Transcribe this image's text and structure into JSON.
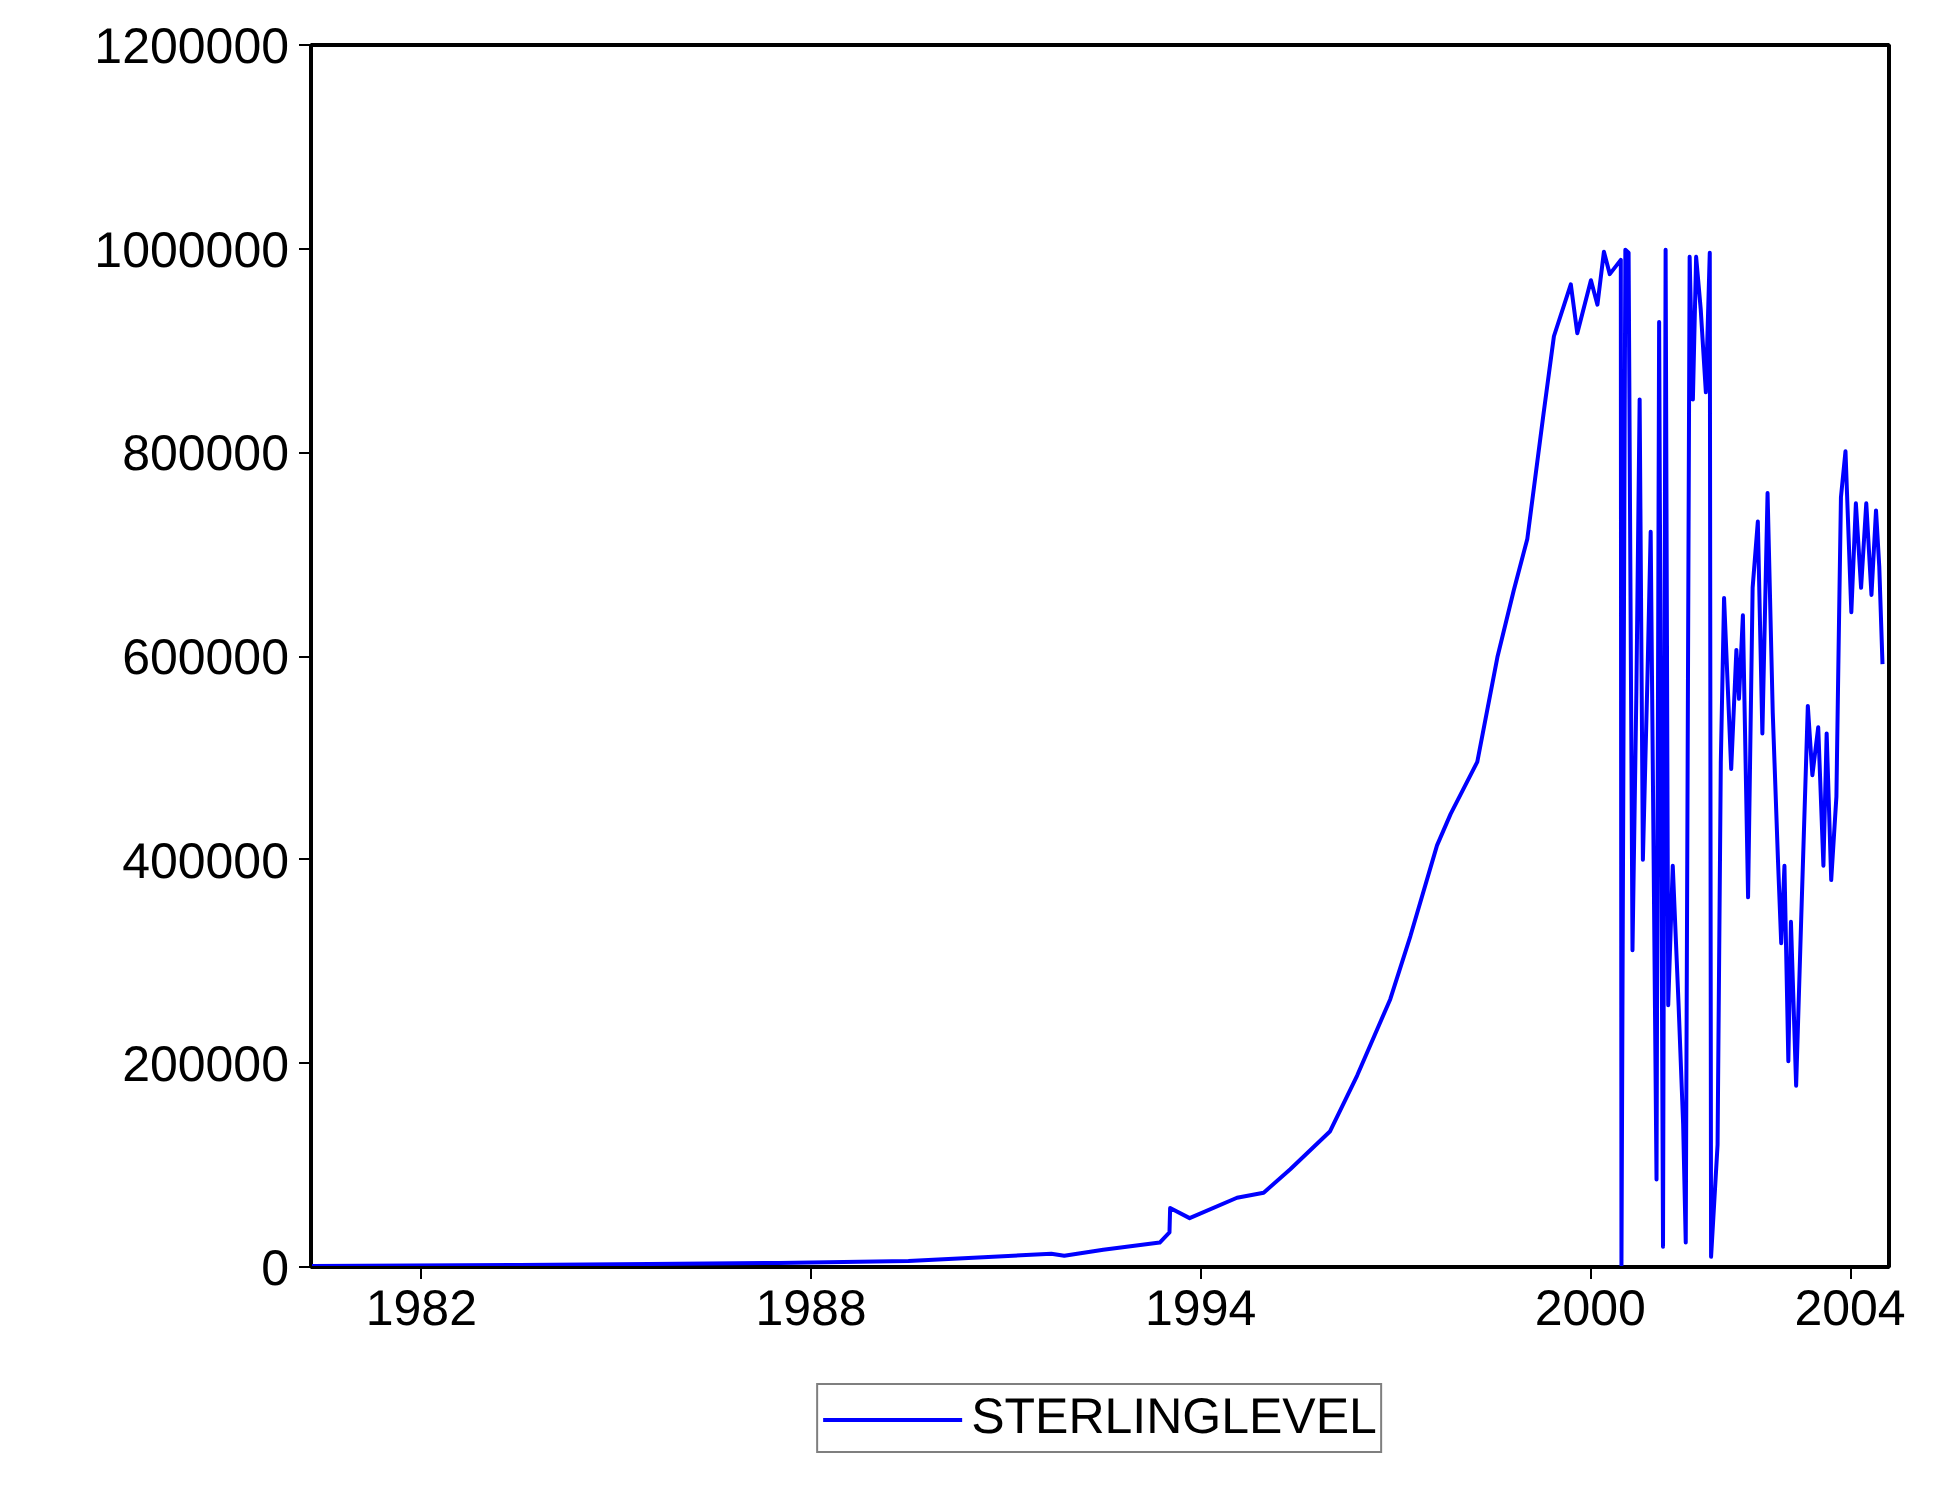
{
  "chart_data": {
    "type": "line",
    "xlim": [
      1980.8,
      2005.1
    ],
    "ylim": [
      0,
      1200000
    ],
    "xticks": [
      {
        "value": 1982.5,
        "label": "1982"
      },
      {
        "value": 1988.5,
        "label": "1988"
      },
      {
        "value": 1994.5,
        "label": "1994"
      },
      {
        "value": 2000.5,
        "label": "2000"
      },
      {
        "value": 2004.5,
        "label": "2004"
      }
    ],
    "yticks": [
      0,
      200000,
      400000,
      600000,
      800000,
      1000000,
      1200000
    ],
    "grid": false,
    "legend": "bottom",
    "series": [
      {
        "name": "STERLINGLEVEL",
        "color": "#0000ff",
        "x": [
          1980.81,
          1984,
          1986,
          1988,
          1990,
          1991,
          1992.2,
          1992.4,
          1993.0,
          1993.87,
          1994.02,
          1994.03,
          1994.33,
          1995.06,
          1995.47,
          1995.88,
          1996.49,
          1996.91,
          1997.42,
          1997.73,
          1998.14,
          1998.35,
          1998.76,
          1999.07,
          1999.32,
          1999.53,
          1999.78,
          1999.94,
          2000.2,
          2000.3,
          2000.51,
          2000.61,
          2000.71,
          2000.8,
          2000.97,
          2000.98,
          2001.04,
          2001.09,
          2001.15,
          2001.21,
          2001.26,
          2001.31,
          2001.38,
          2001.43,
          2001.52,
          2001.56,
          2001.62,
          2001.66,
          2001.7,
          2001.77,
          2001.86,
          2001.93,
          2001.97,
          2002.03,
          2002.08,
          2002.13,
          2002.2,
          2002.28,
          2002.34,
          2002.36,
          2002.46,
          2002.51,
          2002.56,
          2002.67,
          2002.75,
          2002.79,
          2002.85,
          2002.93,
          2003.0,
          2003.08,
          2003.15,
          2003.23,
          2003.31,
          2003.39,
          2003.44,
          2003.49,
          2003.55,
          2003.59,
          2003.67,
          2003.75,
          2003.85,
          2003.92,
          2004.01,
          2004.09,
          2004.14,
          2004.21,
          2004.29,
          2004.33,
          2004.36,
          2004.43,
          2004.52,
          2004.59,
          2004.67,
          2004.75,
          2004.83,
          2004.9,
          2004.95,
          2005.0
        ],
        "values": [
          1000,
          2000,
          3000,
          4000,
          6000,
          9000,
          13000,
          11000,
          17000,
          24000,
          34000,
          58000,
          48000,
          68000,
          73000,
          96000,
          133000,
          188000,
          263000,
          325000,
          414000,
          445000,
          496000,
          599000,
          664000,
          715000,
          838000,
          914000,
          965000,
          917000,
          969000,
          945000,
          997000,
          975000,
          989000,
          0,
          999000,
          996000,
          311000,
          565000,
          852000,
          400000,
          578000,
          722000,
          86000,
          928000,
          20000,
          999000,
          257000,
          394000,
          257000,
          140000,
          24000,
          992000,
          852000,
          992000,
          941000,
          859000,
          996000,
          10000,
          120000,
          496000,
          657000,
          489000,
          606000,
          558000,
          640000,
          363000,
          667000,
          732000,
          524000,
          760000,
          544000,
          400000,
          318000,
          394000,
          202000,
          339000,
          178000,
          346000,
          551000,
          483000,
          530000,
          394000,
          524000,
          380000,
          462000,
          633000,
          756000,
          801000,
          643000,
          750000,
          667000,
          750000,
          660000,
          743000,
          688000,
          592000
        ]
      }
    ]
  }
}
